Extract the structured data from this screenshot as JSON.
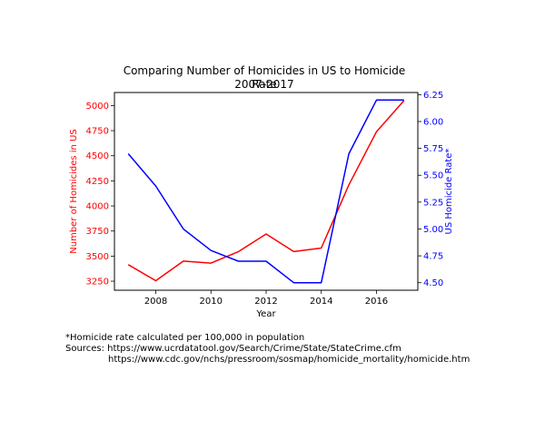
{
  "chart_data": {
    "type": "line",
    "title": "Comparing Number of Homicides in US to Homicide Rate",
    "subtitle": "2007-2017",
    "xlabel": "Year",
    "x": [
      2007,
      2008,
      2009,
      2010,
      2011,
      2012,
      2013,
      2014,
      2015,
      2016,
      2017
    ],
    "xlim": [
      2006.5,
      2017.5
    ],
    "xticks": [
      2008,
      2010,
      2012,
      2014,
      2016
    ],
    "grid": false,
    "series": [
      {
        "axis": "left",
        "color": "#ff0000",
        "ylabel": "Number of Homicides in US",
        "ylim": [
          3160,
          5130
        ],
        "yticks": [
          3250,
          3500,
          3750,
          4000,
          4250,
          4500,
          4750,
          5000
        ],
        "ytick_labels": [
          "3250",
          "3500",
          "3750",
          "4000",
          "4250",
          "4500",
          "4750",
          "5000"
        ],
        "values": [
          3415,
          3255,
          3450,
          3430,
          3545,
          3720,
          3545,
          3580,
          4210,
          4740,
          5050
        ]
      },
      {
        "axis": "right",
        "color": "#0000ff",
        "ylabel": "US Homicide Rate*",
        "ylim": [
          4.43,
          6.27
        ],
        "yticks": [
          4.5,
          4.75,
          5.0,
          5.25,
          5.5,
          5.75,
          6.0,
          6.25
        ],
        "ytick_labels": [
          "4.50",
          "4.75",
          "5.00",
          "5.25",
          "5.50",
          "5.75",
          "6.00",
          "6.25"
        ],
        "values": [
          5.7,
          5.4,
          5.0,
          4.8,
          4.7,
          4.7,
          4.5,
          4.5,
          5.7,
          6.2,
          6.2
        ]
      }
    ]
  },
  "footnotes": {
    "note": "*Homicide rate calculated per 100,000 in population",
    "source_1": "Sources: https://www.ucrdatatool.gov/Search/Crime/State/StateCrime.cfm",
    "source_2": "https://www.cdc.gov/nchs/pressroom/sosmap/homicide_mortality/homicide.htm"
  }
}
